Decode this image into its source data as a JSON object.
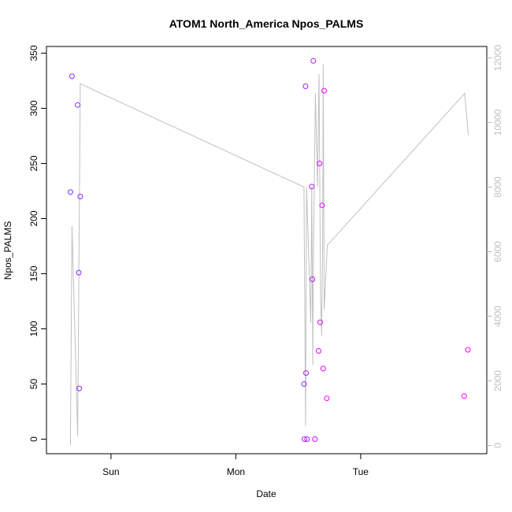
{
  "chart_data": {
    "type": "scatter",
    "title": "ATOM1 North_America Npos_PALMS",
    "xlabel": "Date",
    "ylabel": "Npos_PALMS",
    "x_ticks": [
      "Sun",
      "Mon",
      "Tue"
    ],
    "x_tick_values": [
      0,
      24,
      48
    ],
    "xlim": [
      -9.6,
      69.6
    ],
    "y_ticks": [
      "0",
      "50",
      "100",
      "150",
      "200",
      "250",
      "300",
      "350"
    ],
    "y_tick_values": [
      0,
      50,
      100,
      150,
      200,
      250,
      300,
      350
    ],
    "ylim": [
      0,
      350
    ],
    "y2_ticks": [
      "0",
      "2000",
      "4000",
      "6000",
      "8000",
      "10000",
      "12000"
    ],
    "y2_tick_values": [
      0,
      2000,
      4000,
      6000,
      8000,
      10000,
      12000
    ],
    "y2lim": [
      0,
      12000
    ],
    "grid": false,
    "colors": {
      "point_start": "#7b2cff",
      "point_end": "#ff00ff",
      "line": "#c0c0c0"
    },
    "points": [
      {
        "x": -7.8,
        "y": 224
      },
      {
        "x": -7.5,
        "y": 329
      },
      {
        "x": -6.4,
        "y": 303
      },
      {
        "x": -6.2,
        "y": 151
      },
      {
        "x": -6.1,
        "y": 46
      },
      {
        "x": -5.9,
        "y": 220
      },
      {
        "x": 37.1,
        "y": 50
      },
      {
        "x": 37.2,
        "y": 0
      },
      {
        "x": 37.4,
        "y": 320
      },
      {
        "x": 37.5,
        "y": 60
      },
      {
        "x": 37.7,
        "y": 0
      },
      {
        "x": 38.6,
        "y": 229
      },
      {
        "x": 38.7,
        "y": 145
      },
      {
        "x": 38.9,
        "y": 343
      },
      {
        "x": 39.2,
        "y": 0
      },
      {
        "x": 39.9,
        "y": 80
      },
      {
        "x": 40.1,
        "y": 250
      },
      {
        "x": 40.2,
        "y": 106
      },
      {
        "x": 40.6,
        "y": 212
      },
      {
        "x": 40.8,
        "y": 64
      },
      {
        "x": 41.0,
        "y": 316
      },
      {
        "x": 41.5,
        "y": 37
      },
      {
        "x": 67.9,
        "y": 39
      },
      {
        "x": 68.6,
        "y": 81
      }
    ],
    "line_series": {
      "axis": "right",
      "points": [
        {
          "x": -7.8,
          "y": 0
        },
        {
          "x": -7.5,
          "y": 6800
        },
        {
          "x": -6.4,
          "y": 300
        },
        {
          "x": -5.9,
          "y": 11200
        },
        {
          "x": 37.1,
          "y": 8000
        },
        {
          "x": 37.4,
          "y": 600
        },
        {
          "x": 37.6,
          "y": 8000
        },
        {
          "x": 38.4,
          "y": 3800
        },
        {
          "x": 38.6,
          "y": 8000
        },
        {
          "x": 38.8,
          "y": 2500
        },
        {
          "x": 38.9,
          "y": 5500
        },
        {
          "x": 39.3,
          "y": 10900
        },
        {
          "x": 39.7,
          "y": 8000
        },
        {
          "x": 40.0,
          "y": 11500
        },
        {
          "x": 40.3,
          "y": 4600
        },
        {
          "x": 40.5,
          "y": 3400
        },
        {
          "x": 40.7,
          "y": 6500
        },
        {
          "x": 40.8,
          "y": 11800
        },
        {
          "x": 41.0,
          "y": 4200
        },
        {
          "x": 41.6,
          "y": 6200
        },
        {
          "x": 68.0,
          "y": 10900
        },
        {
          "x": 68.7,
          "y": 9600
        }
      ]
    }
  }
}
